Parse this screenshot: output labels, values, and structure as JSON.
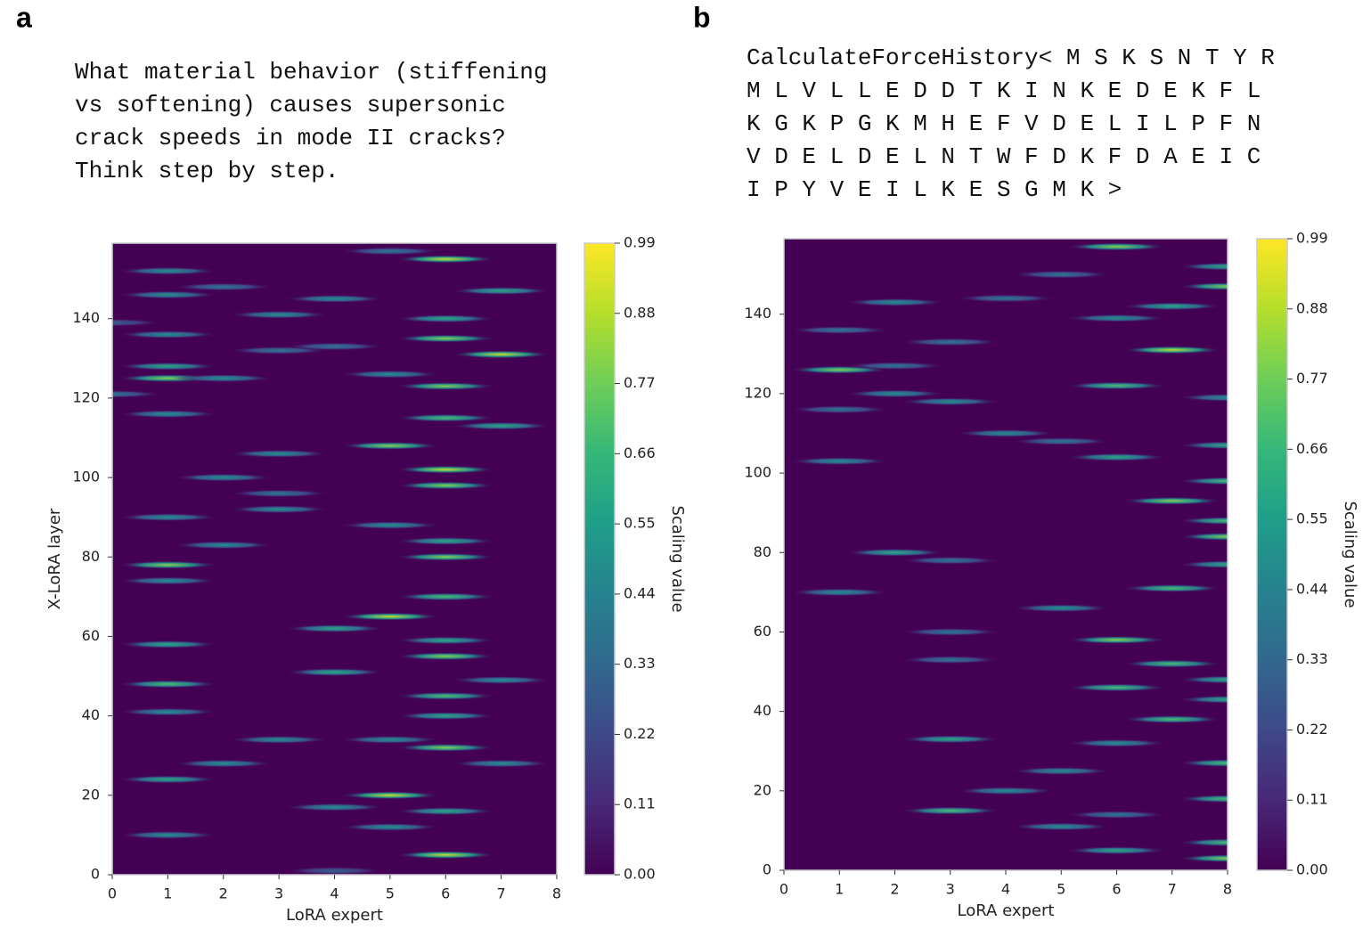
{
  "panels": [
    {
      "label": "a",
      "prompt": [
        "What material behavior (stiffening",
        "vs softening) causes supersonic",
        "crack speeds in mode II cracks?",
        "Think step by step."
      ]
    },
    {
      "label": "b",
      "prompt": [
        "CalculateForceHistory< M S K S N T Y R",
        "M L V L L E D D T K I N K E D E K F L",
        "K G K P G K M H E F V D E L I L P F N",
        "V D E L D E L N T W F D K F D A E I C",
        "I P Y V E I L K E S G M K >"
      ]
    }
  ],
  "chart_data": [
    {
      "type": "heatmap",
      "xlabel": "LoRA expert",
      "ylabel": "X-LoRA layer",
      "colorbar_label": "Scaling value",
      "colormap": [
        "#440154",
        "#482878",
        "#3e4989",
        "#31688e",
        "#26828e",
        "#1f9e89",
        "#35b779",
        "#6ece58",
        "#b5de2b",
        "#fde725"
      ],
      "xlim": [
        0,
        8
      ],
      "xticks": [
        0,
        1,
        2,
        3,
        4,
        5,
        6,
        7,
        8
      ],
      "ylim": [
        0,
        159
      ],
      "yticks": [
        0,
        20,
        40,
        60,
        80,
        100,
        120,
        140
      ],
      "clim": [
        0,
        0.99
      ],
      "cticks": [
        {
          "value": 0,
          "label": "0.00"
        },
        0.11,
        0.22,
        0.33,
        0.44,
        0.55,
        0.66,
        0.77,
        0.88,
        0.99
      ],
      "x": [
        6,
        5,
        1,
        2,
        1,
        7,
        4,
        3,
        6,
        0,
        1,
        6,
        7,
        3,
        4,
        1,
        1,
        2,
        5,
        6,
        0,
        1,
        6,
        7,
        5,
        6,
        3,
        6,
        2,
        3,
        1,
        3,
        5,
        6,
        2,
        1,
        6,
        1,
        6,
        5,
        4,
        6,
        1,
        6,
        4,
        1,
        7,
        6,
        1,
        6,
        3,
        6,
        5,
        2,
        7,
        1,
        5,
        4,
        6,
        1,
        5,
        6,
        4
      ],
      "y": [
        155,
        157,
        152,
        148,
        146,
        147,
        145,
        141,
        140,
        139,
        136,
        135,
        131,
        132,
        133,
        128,
        125,
        125,
        126,
        123,
        121,
        116,
        115,
        113,
        108,
        102,
        106,
        98,
        100,
        96,
        90,
        92,
        88,
        84,
        83,
        78,
        80,
        74,
        70,
        65,
        62,
        59,
        58,
        55,
        51,
        48,
        49,
        45,
        41,
        40,
        34,
        32,
        34,
        28,
        28,
        24,
        20,
        17,
        16,
        10,
        12,
        5,
        1
      ],
      "values": [
        0.9,
        0.4,
        0.5,
        0.4,
        0.5,
        0.6,
        0.5,
        0.5,
        0.6,
        0.3,
        0.5,
        0.8,
        0.9,
        0.4,
        0.4,
        0.6,
        0.8,
        0.5,
        0.5,
        0.8,
        0.4,
        0.5,
        0.7,
        0.6,
        0.8,
        0.9,
        0.5,
        0.8,
        0.5,
        0.4,
        0.5,
        0.5,
        0.5,
        0.6,
        0.5,
        0.8,
        0.8,
        0.5,
        0.7,
        0.9,
        0.6,
        0.6,
        0.6,
        0.8,
        0.6,
        0.7,
        0.5,
        0.7,
        0.5,
        0.6,
        0.5,
        0.8,
        0.5,
        0.5,
        0.5,
        0.6,
        0.9,
        0.5,
        0.6,
        0.5,
        0.5,
        0.9,
        0.3
      ]
    },
    {
      "type": "heatmap",
      "xlabel": "LoRA expert",
      "colorbar_label": "Scaling value",
      "colormap": [
        "#440154",
        "#482878",
        "#3e4989",
        "#31688e",
        "#26828e",
        "#1f9e89",
        "#35b779",
        "#6ece58",
        "#b5de2b",
        "#fde725"
      ],
      "xlim": [
        0,
        8
      ],
      "xticks": [
        0,
        1,
        2,
        3,
        4,
        5,
        6,
        7,
        8
      ],
      "ylim": [
        0,
        159
      ],
      "yticks": [
        0,
        20,
        40,
        60,
        80,
        100,
        120,
        140
      ],
      "clim": [
        0,
        0.99
      ],
      "cticks": [
        {
          "value": 0,
          "label": "0.00"
        },
        0.11,
        0.22,
        0.33,
        0.44,
        0.55,
        0.66,
        0.77,
        0.88,
        0.99
      ],
      "x": [
        6,
        8,
        8,
        5,
        2,
        4,
        7,
        6,
        1,
        7,
        3,
        1,
        2,
        6,
        2,
        3,
        8,
        1,
        4,
        5,
        8,
        6,
        1,
        8,
        7,
        8,
        8,
        2,
        3,
        8,
        1,
        7,
        5,
        6,
        3,
        3,
        7,
        8,
        6,
        8,
        7,
        3,
        6,
        5,
        8,
        4,
        8,
        3,
        6,
        5,
        8,
        6,
        8
      ],
      "y": [
        157,
        152,
        147,
        150,
        143,
        144,
        142,
        139,
        136,
        131,
        133,
        126,
        127,
        122,
        120,
        118,
        119,
        116,
        110,
        108,
        107,
        104,
        103,
        98,
        93,
        88,
        84,
        80,
        78,
        77,
        70,
        71,
        66,
        58,
        60,
        53,
        52,
        48,
        46,
        43,
        38,
        33,
        32,
        25,
        27,
        20,
        18,
        15,
        14,
        11,
        7,
        5,
        3
      ],
      "values": [
        0.8,
        0.6,
        0.8,
        0.4,
        0.5,
        0.4,
        0.6,
        0.5,
        0.4,
        0.9,
        0.4,
        0.8,
        0.4,
        0.7,
        0.5,
        0.5,
        0.5,
        0.4,
        0.5,
        0.4,
        0.6,
        0.6,
        0.5,
        0.7,
        0.8,
        0.7,
        0.8,
        0.6,
        0.4,
        0.6,
        0.5,
        0.7,
        0.5,
        0.8,
        0.4,
        0.4,
        0.7,
        0.6,
        0.7,
        0.6,
        0.7,
        0.6,
        0.5,
        0.5,
        0.7,
        0.5,
        0.7,
        0.7,
        0.4,
        0.5,
        0.7,
        0.6,
        0.8
      ]
    }
  ]
}
